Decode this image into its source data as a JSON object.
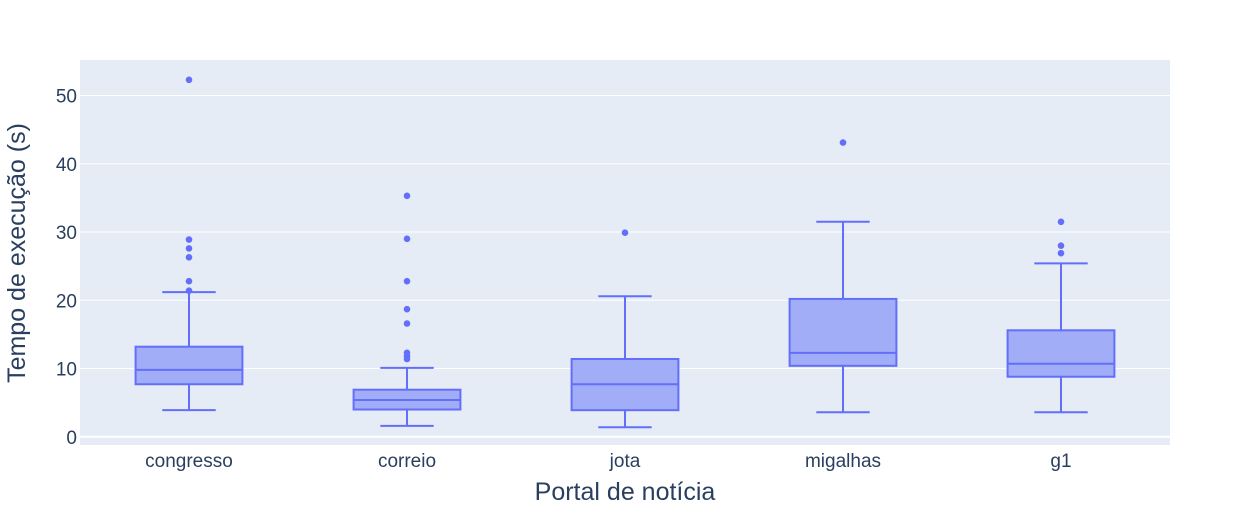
{
  "chart_data": {
    "type": "box",
    "xlabel": "Portal de notícia",
    "ylabel": "Tempo de execução (s)",
    "ylim": [
      -1.2,
      55.2
    ],
    "yticks": [
      0,
      10,
      20,
      30,
      40,
      50
    ],
    "grid": true,
    "colors": {
      "plot_bg": "#e5ecf6",
      "grid": "#ffffff",
      "box_fill": "#a2adf7",
      "box_line": "#636efa",
      "text": "#2a3f5f"
    },
    "categories": [
      "congresso",
      "correio",
      "jota",
      "migalhas",
      "g1"
    ],
    "boxes": [
      {
        "category": "congresso",
        "min": 3.9,
        "q1": 7.7,
        "median": 9.8,
        "q3": 13.2,
        "max": 21.2,
        "outliers": [
          21.4,
          22.8,
          26.3,
          27.6,
          28.9,
          52.3
        ]
      },
      {
        "category": "correio",
        "min": 1.6,
        "q1": 4.0,
        "median": 5.4,
        "q3": 6.9,
        "max": 10.1,
        "outliers": [
          11.4,
          11.8,
          12.3,
          16.6,
          18.7,
          22.8,
          29.0,
          35.3
        ]
      },
      {
        "category": "jota",
        "min": 1.4,
        "q1": 3.9,
        "median": 7.7,
        "q3": 11.4,
        "max": 20.6,
        "outliers": [
          29.9
        ]
      },
      {
        "category": "migalhas",
        "min": 3.6,
        "q1": 10.4,
        "median": 12.3,
        "q3": 20.2,
        "max": 31.5,
        "outliers": [
          43.1
        ]
      },
      {
        "category": "g1",
        "min": 3.6,
        "q1": 8.8,
        "median": 10.7,
        "q3": 15.6,
        "max": 25.4,
        "outliers": [
          26.9,
          28.0,
          31.5
        ]
      }
    ]
  }
}
